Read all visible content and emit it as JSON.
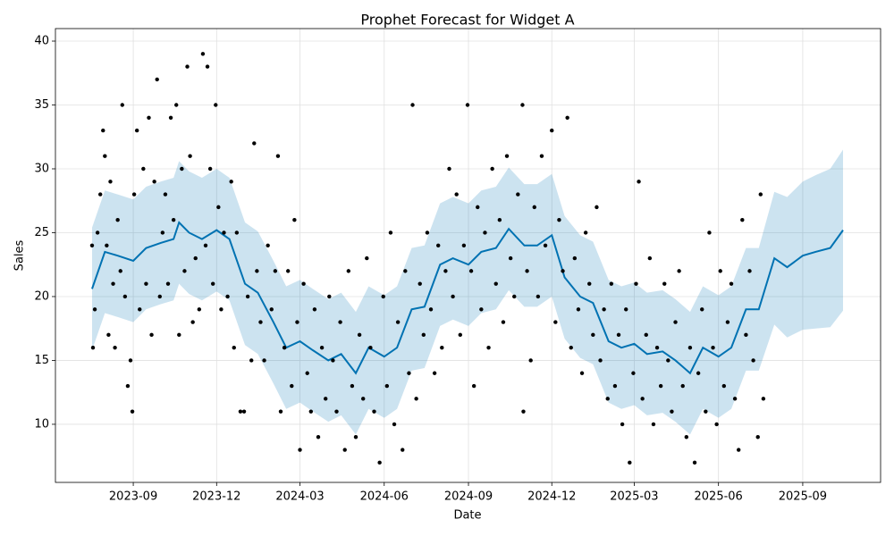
{
  "chart_data": {
    "type": "forecast",
    "title": "Prophet Forecast for Widget A",
    "x_label": "Date",
    "y_label": "Sales",
    "xlim": [
      "2023-06-08",
      "2025-11-25"
    ],
    "ylim": [
      5.45,
      40.98
    ],
    "xticks": [
      {
        "value": "2023-09-01",
        "label": "2023-09"
      },
      {
        "value": "2023-12-01",
        "label": "2023-12"
      },
      {
        "value": "2024-03-01",
        "label": "2024-03"
      },
      {
        "value": "2024-06-01",
        "label": "2024-06"
      },
      {
        "value": "2024-09-01",
        "label": "2024-09"
      },
      {
        "value": "2024-12-01",
        "label": "2024-12"
      },
      {
        "value": "2025-03-01",
        "label": "2025-03"
      },
      {
        "value": "2025-06-01",
        "label": "2025-06"
      },
      {
        "value": "2025-09-01",
        "label": "2025-09"
      }
    ],
    "yticks": [
      10,
      15,
      20,
      25,
      30,
      35,
      40
    ],
    "grid": true,
    "points": {
      "color": "#000000",
      "x": [
        "2023-07-18",
        "2023-07-19",
        "2023-07-21",
        "2023-07-24",
        "2023-07-27",
        "2023-07-30",
        "2023-08-01",
        "2023-08-03",
        "2023-08-05",
        "2023-08-07",
        "2023-08-10",
        "2023-08-12",
        "2023-08-15",
        "2023-08-18",
        "2023-08-20",
        "2023-08-23",
        "2023-08-26",
        "2023-08-29",
        "2023-08-31",
        "2023-09-02",
        "2023-09-05",
        "2023-09-08",
        "2023-09-12",
        "2023-09-15",
        "2023-09-18",
        "2023-09-21",
        "2023-09-24",
        "2023-09-27",
        "2023-09-30",
        "2023-10-03",
        "2023-10-06",
        "2023-10-09",
        "2023-10-12",
        "2023-10-15",
        "2023-10-18",
        "2023-10-21",
        "2023-10-24",
        "2023-10-27",
        "2023-10-30",
        "2023-11-02",
        "2023-11-05",
        "2023-11-08",
        "2023-11-12",
        "2023-11-16",
        "2023-11-19",
        "2023-11-21",
        "2023-11-24",
        "2023-11-27",
        "2023-11-30",
        "2023-12-03",
        "2023-12-06",
        "2023-12-09",
        "2023-12-13",
        "2023-12-17",
        "2023-12-20",
        "2023-12-23",
        "2023-12-27",
        "2023-12-31",
        "2024-01-04",
        "2024-01-08",
        "2024-01-11",
        "2024-01-14",
        "2024-01-18",
        "2024-01-22",
        "2024-01-26",
        "2024-01-30",
        "2024-02-03",
        "2024-02-06",
        "2024-02-09",
        "2024-02-13",
        "2024-02-17",
        "2024-02-21",
        "2024-02-24",
        "2024-02-27",
        "2024-03-01",
        "2024-03-05",
        "2024-03-09",
        "2024-03-13",
        "2024-03-17",
        "2024-03-21",
        "2024-03-25",
        "2024-03-29",
        "2024-04-02",
        "2024-04-06",
        "2024-04-10",
        "2024-04-14",
        "2024-04-19",
        "2024-04-23",
        "2024-04-27",
        "2024-05-01",
        "2024-05-05",
        "2024-05-09",
        "2024-05-13",
        "2024-05-17",
        "2024-05-21",
        "2024-05-27",
        "2024-05-31",
        "2024-06-04",
        "2024-06-08",
        "2024-06-12",
        "2024-06-16",
        "2024-06-21",
        "2024-06-24",
        "2024-06-28",
        "2024-07-02",
        "2024-07-06",
        "2024-07-10",
        "2024-07-14",
        "2024-07-18",
        "2024-07-22",
        "2024-07-26",
        "2024-07-30",
        "2024-08-03",
        "2024-08-07",
        "2024-08-11",
        "2024-08-15",
        "2024-08-19",
        "2024-08-23",
        "2024-08-27",
        "2024-08-31",
        "2024-09-04",
        "2024-09-07",
        "2024-09-11",
        "2024-09-15",
        "2024-09-19",
        "2024-09-23",
        "2024-09-27",
        "2024-10-01",
        "2024-10-05",
        "2024-10-09",
        "2024-10-13",
        "2024-10-17",
        "2024-10-21",
        "2024-10-25",
        "2024-10-30",
        "2024-10-31",
        "2024-11-04",
        "2024-11-08",
        "2024-11-12",
        "2024-11-16",
        "2024-11-20",
        "2024-11-24",
        "2024-12-01",
        "2024-12-05",
        "2024-12-09",
        "2024-12-13",
        "2024-12-18",
        "2024-12-22",
        "2024-12-26",
        "2024-12-30",
        "2025-01-03",
        "2025-01-07",
        "2025-01-11",
        "2025-01-15",
        "2025-01-19",
        "2025-01-23",
        "2025-01-27",
        "2025-01-31",
        "2025-02-04",
        "2025-02-08",
        "2025-02-12",
        "2025-02-16",
        "2025-02-20",
        "2025-02-24",
        "2025-02-28",
        "2025-03-03",
        "2025-03-06",
        "2025-03-10",
        "2025-03-14",
        "2025-03-18",
        "2025-03-22",
        "2025-03-26",
        "2025-03-30",
        "2025-04-03",
        "2025-04-07",
        "2025-04-11",
        "2025-04-15",
        "2025-04-19",
        "2025-04-23",
        "2025-04-27",
        "2025-05-01",
        "2025-05-06",
        "2025-05-10",
        "2025-05-14",
        "2025-05-18",
        "2025-05-22",
        "2025-05-26",
        "2025-05-30",
        "2025-06-03",
        "2025-06-07",
        "2025-06-11",
        "2025-06-15",
        "2025-06-19",
        "2025-06-23",
        "2025-06-27",
        "2025-07-01",
        "2025-07-05",
        "2025-07-09",
        "2025-07-14",
        "2025-07-17",
        "2025-07-20"
      ],
      "values": [
        24,
        16,
        19,
        25,
        28,
        33,
        31,
        24,
        17,
        29,
        21,
        16,
        26,
        22,
        35,
        20,
        13,
        15,
        11,
        28,
        33,
        19,
        30,
        21,
        34,
        17,
        29,
        37,
        20,
        25,
        28,
        21,
        34,
        26,
        35,
        17,
        30,
        22,
        38,
        31,
        18,
        23,
        19,
        39,
        24,
        38,
        30,
        21,
        35,
        27,
        19,
        25,
        20,
        29,
        16,
        25,
        11,
        11,
        20,
        15,
        32,
        22,
        18,
        15,
        24,
        19,
        22,
        31,
        11,
        16,
        22,
        13,
        26,
        18,
        8,
        21,
        14,
        11,
        19,
        9,
        16,
        12,
        20,
        15,
        11,
        18,
        8,
        22,
        13,
        9,
        17,
        12,
        23,
        16,
        11,
        7,
        20,
        13,
        25,
        10,
        18,
        8,
        22,
        14,
        35,
        12,
        21,
        17,
        25,
        19,
        14,
        24,
        16,
        22,
        30,
        20,
        28,
        17,
        24,
        35,
        22,
        13,
        27,
        19,
        25,
        16,
        30,
        21,
        26,
        18,
        31,
        23,
        20,
        28,
        35,
        11,
        22,
        15,
        27,
        20,
        31,
        24,
        33,
        18,
        26,
        22,
        34,
        16,
        23,
        19,
        14,
        25,
        21,
        17,
        27,
        15,
        19,
        12,
        21,
        13,
        17,
        10,
        19,
        7,
        14,
        21,
        29,
        12,
        17,
        23,
        10,
        16,
        13,
        21,
        15,
        11,
        18,
        22,
        13,
        9,
        16,
        7,
        14,
        19,
        11,
        25,
        16,
        10,
        22,
        13,
        18,
        21,
        12,
        8,
        26,
        17,
        22,
        15,
        9,
        28,
        12
      ]
    },
    "forecast": {
      "color": "#0072b2",
      "x": [
        "2023-07-18",
        "2023-08-01",
        "2023-08-15",
        "2023-09-01",
        "2023-09-15",
        "2023-10-01",
        "2023-10-15",
        "2023-10-21",
        "2023-11-01",
        "2023-11-15",
        "2023-12-01",
        "2023-12-15",
        "2024-01-01",
        "2024-01-15",
        "2024-02-01",
        "2024-02-15",
        "2024-03-01",
        "2024-03-15",
        "2024-04-01",
        "2024-04-15",
        "2024-05-01",
        "2024-05-15",
        "2024-06-01",
        "2024-06-15",
        "2024-07-01",
        "2024-07-15",
        "2024-08-01",
        "2024-08-15",
        "2024-09-01",
        "2024-09-15",
        "2024-10-01",
        "2024-10-15",
        "2024-11-01",
        "2024-11-15",
        "2024-12-01",
        "2024-12-15",
        "2025-01-01",
        "2025-01-15",
        "2025-02-01",
        "2025-02-15",
        "2025-03-01",
        "2025-03-15",
        "2025-04-01",
        "2025-04-15",
        "2025-05-01",
        "2025-05-15",
        "2025-06-01",
        "2025-06-15",
        "2025-07-01",
        "2025-07-15",
        "2025-08-01",
        "2025-08-15",
        "2025-09-01",
        "2025-09-15",
        "2025-10-01",
        "2025-10-15"
      ],
      "values": [
        20.6,
        23.5,
        23.2,
        22.8,
        23.8,
        24.2,
        24.5,
        25.8,
        25.0,
        24.5,
        25.2,
        24.5,
        21.0,
        20.3,
        18.0,
        16.0,
        16.5,
        15.8,
        15.0,
        15.5,
        14.0,
        16.0,
        15.3,
        16.0,
        19.0,
        19.2,
        22.5,
        23.0,
        22.5,
        23.5,
        23.8,
        25.3,
        24.0,
        24.0,
        24.8,
        21.5,
        20.0,
        19.5,
        16.5,
        16.0,
        16.3,
        15.5,
        15.7,
        15.0,
        14.0,
        16.0,
        15.3,
        16.0,
        19.0,
        19.0,
        23.0,
        22.3,
        23.2,
        23.5,
        23.8,
        25.2
      ],
      "lower": [
        15.8,
        18.7,
        18.4,
        18.0,
        19.0,
        19.4,
        19.7,
        21.0,
        20.2,
        19.7,
        20.4,
        19.7,
        16.2,
        15.5,
        13.2,
        11.2,
        11.7,
        11.0,
        10.2,
        10.7,
        9.2,
        11.2,
        10.5,
        11.2,
        14.2,
        14.4,
        17.7,
        18.2,
        17.7,
        18.7,
        19.0,
        20.5,
        19.2,
        19.2,
        20.0,
        16.7,
        15.2,
        14.7,
        11.7,
        11.2,
        11.5,
        10.7,
        10.9,
        10.2,
        9.2,
        11.2,
        10.5,
        11.2,
        14.2,
        14.2,
        17.8,
        16.8,
        17.4,
        17.5,
        17.6,
        18.9
      ],
      "upper": [
        25.4,
        28.3,
        28.0,
        27.6,
        28.6,
        29.0,
        29.3,
        30.6,
        29.8,
        29.3,
        30.0,
        29.3,
        25.8,
        25.1,
        22.8,
        20.8,
        21.3,
        20.6,
        19.8,
        20.3,
        18.8,
        20.8,
        20.1,
        20.8,
        23.8,
        24.0,
        27.3,
        27.8,
        27.3,
        28.3,
        28.6,
        30.1,
        28.8,
        28.8,
        29.6,
        26.3,
        24.8,
        24.3,
        21.3,
        20.8,
        21.1,
        20.3,
        20.5,
        19.8,
        18.8,
        20.8,
        20.1,
        20.8,
        23.8,
        23.8,
        28.2,
        27.8,
        29.0,
        29.5,
        30.0,
        31.5
      ]
    }
  }
}
